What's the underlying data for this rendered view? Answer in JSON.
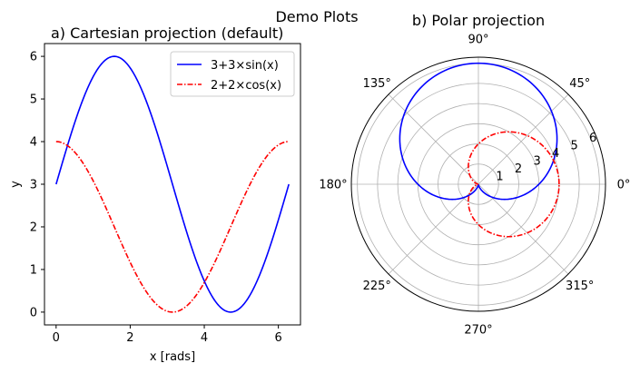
{
  "figure": {
    "suptitle": "Demo Plots"
  },
  "colors": {
    "series_sin": "#0000ff",
    "series_cos": "#ff0000",
    "grid": "#b0b0b0",
    "axes": "#000000"
  },
  "chart_data": [
    {
      "type": "line",
      "title": "a) Cartesian projection (default)",
      "xlabel": "x [rads]",
      "ylabel": "y",
      "xlim": [
        -0.314,
        6.597
      ],
      "ylim": [
        -0.3,
        6.3
      ],
      "xticks": [
        0,
        2,
        4,
        6
      ],
      "yticks": [
        0,
        1,
        2,
        3,
        4,
        5,
        6
      ],
      "grid": false,
      "legend_position": "top-right",
      "x": [
        0,
        0.3307,
        0.6614,
        0.9921,
        1.3228,
        1.6535,
        1.9842,
        2.3149,
        2.6456,
        2.9762,
        3.3069,
        3.6376,
        3.9683,
        4.299,
        4.6297,
        4.9604,
        5.2911,
        5.6218,
        5.9525,
        6.2832
      ],
      "series": [
        {
          "name": "3+3×sin(x)",
          "style": "solid",
          "color": "#0000ff",
          "values": [
            3.0,
            3.974,
            4.842,
            5.508,
            5.903,
            5.99,
            5.755,
            5.219,
            4.436,
            3.493,
            2.507,
            1.564,
            0.781,
            0.245,
            0.01,
            0.097,
            0.492,
            1.158,
            2.026,
            3.0
          ]
        },
        {
          "name": "2+2×cos(x)",
          "style": "dashdot",
          "color": "#ff0000",
          "values": [
            4.0,
            3.891,
            3.578,
            3.093,
            2.491,
            1.835,
            1.195,
            0.647,
            0.245,
            0.027,
            0.027,
            0.245,
            0.647,
            1.195,
            1.835,
            2.491,
            3.093,
            3.578,
            3.891,
            4.0
          ]
        }
      ]
    },
    {
      "type": "line",
      "subtype": "polar",
      "title": "b) Polar projection",
      "theta_tick_labels": [
        "0°",
        "45°",
        "90°",
        "135°",
        "180°",
        "225°",
        "270°",
        "315°"
      ],
      "r_tick_labels": [
        "1",
        "2",
        "3",
        "4",
        "5",
        "6"
      ],
      "rlim": [
        0,
        6.3
      ],
      "grid": true,
      "series": [
        {
          "name": "3+3×sin(x)",
          "style": "solid",
          "color": "#0000ff"
        },
        {
          "name": "2+2×cos(x)",
          "style": "dashdot",
          "color": "#ff0000"
        }
      ]
    }
  ]
}
